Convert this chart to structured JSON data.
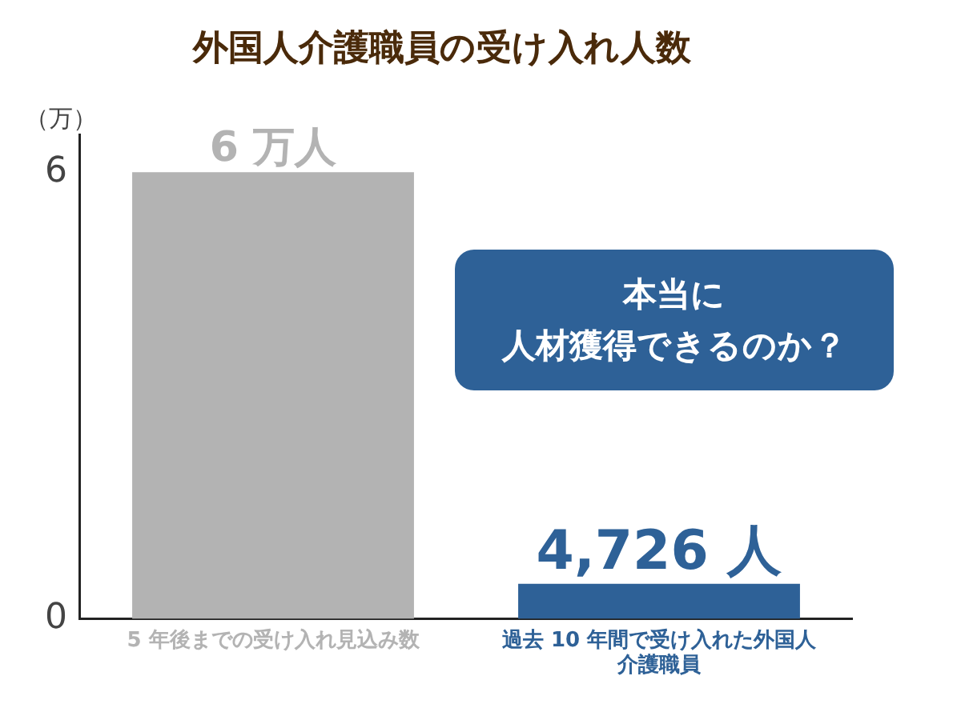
{
  "chart_data": {
    "type": "bar",
    "title": "外国人介護職員の受け入れ人数",
    "ylabel": "（万）",
    "categories": [
      "5 年後までの受け入れ見込み数",
      "過去 10 年間で受け入れた外国人介護職員"
    ],
    "values": [
      6,
      0.4726
    ],
    "colors": [
      "#b3b3b3",
      "#2e6197"
    ],
    "ylim": [
      0,
      6.5
    ],
    "yticks": [
      0,
      6
    ],
    "grid": false,
    "legend": false,
    "annotations": [
      {
        "text": "6 万人",
        "x": "5 年後までの受け入れ見込み数",
        "y": 6
      },
      {
        "text": "4,726 人",
        "x": "過去 10 年間で受け入れた外国人介護職員",
        "y": 0.4726
      },
      "本当に",
      "人材獲得できるのか？"
    ]
  }
}
